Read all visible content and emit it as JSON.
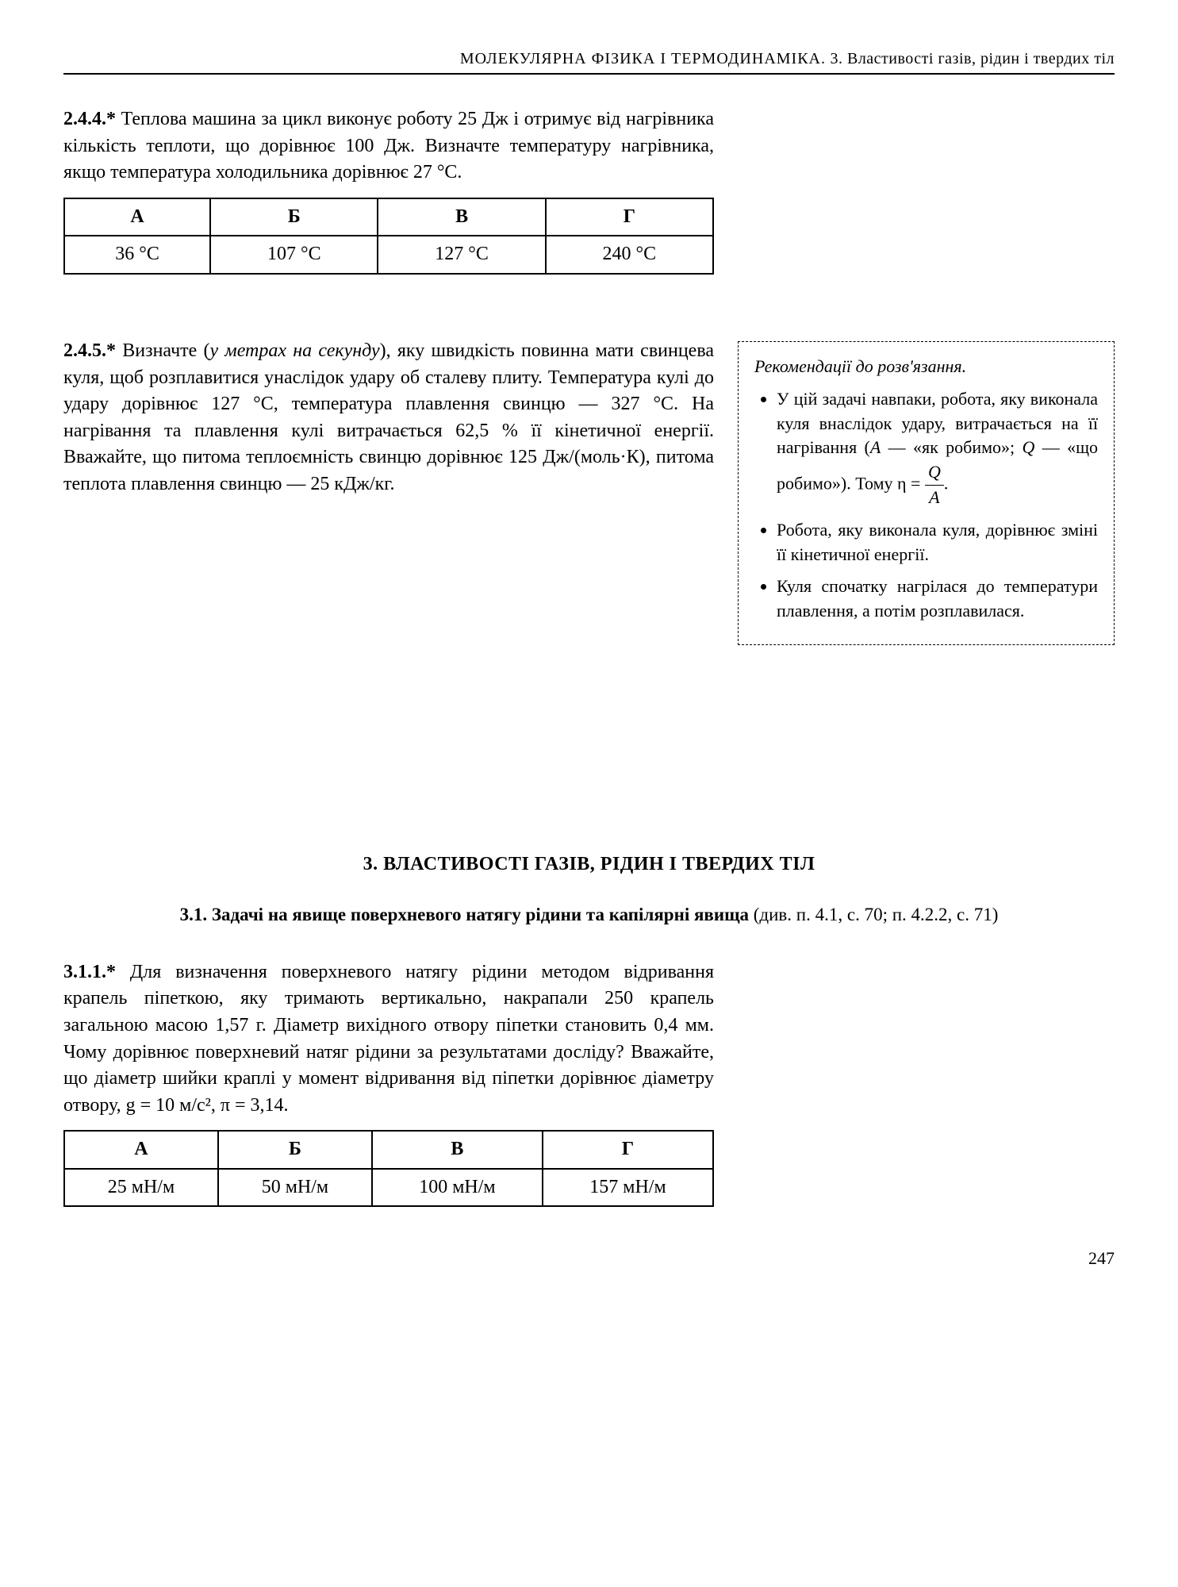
{
  "header": {
    "main": "МОЛЕКУЛЯРНА ФІЗИКА І ТЕРМОДИНАМІКА.",
    "sub": "3. Властивості газів, рідин і твердих тіл"
  },
  "problem_244": {
    "number": "2.4.4.*",
    "text": "Теплова машина за цикл виконує роботу 25 Дж і отримує від нагрівника кількість теплоти, що дорівнює 100 Дж. Визначте температуру нагрівника, якщо температура холодильника дорівнює 27 °С.",
    "table": {
      "headers": [
        "А",
        "Б",
        "В",
        "Г"
      ],
      "values": [
        "36 °С",
        "107 °С",
        "127 °С",
        "240 °С"
      ]
    }
  },
  "problem_245": {
    "number": "2.4.5.*",
    "intro": "Визначте (",
    "emphasis": "у метрах на секунду",
    "text": "), яку швидкість повинна мати свинцева куля, щоб розплавитися унаслідок удару об сталеву плиту. Температура кулі до удару дорівнює 127 °С, температура плавлення свинцю — 327 °С. На нагрівання та плавлення кулі витрачається 62,5 % її кінетичної енергії. Вважайте, що питома теплоємність свинцю дорівнює 125 Дж/(моль·К), питома теплота плавлення свинцю — 25 кДж/кг."
  },
  "hint": {
    "title": "Рекомендації до розв'язання.",
    "item1_part1": "У цій задачі навпаки, робота, яку виконала куля внаслідок удару, витрачається на її нагрівання (",
    "item1_A": "А",
    "item1_part2": " — «як робимо»; ",
    "item1_Q": "Q",
    "item1_part3": " — «що робимо»). Тому ",
    "item1_eta": "η",
    "item1_eq": " = ",
    "item1_num": "Q",
    "item1_den": "A",
    "item1_end": ".",
    "item2": "Робота, яку виконала куля, дорівнює зміні її кінетичної енергії.",
    "item3": "Куля спочатку нагрілася до температури плавлення, а потім розплавилася."
  },
  "section3": {
    "title": "3. ВЛАСТИВОСТІ ГАЗІВ, РІДИН І ТВЕРДИХ ТІЛ",
    "subtitle_bold": "3.1. Задачі на явище поверхневого натягу рідини та капілярні явища",
    "subtitle_rest": " (див. п. 4.1, с. 70; п. 4.2.2, с. 71)"
  },
  "problem_311": {
    "number": "3.1.1.*",
    "text": "Для визначення поверхневого натягу рідини методом відривання крапель піпеткою, яку тримають вертикально, накрапали 250 крапель загальною масою 1,57 г. Діаметр вихідного отвору піпетки становить 0,4 мм. Чому дорівнює поверхневий натяг рідини за результатами досліду? Вважайте, що діаметр шийки краплі у момент відривання від піпетки дорівнює діаметру отвору, g = 10 м/с², π = 3,14.",
    "table": {
      "headers": [
        "А",
        "Б",
        "В",
        "Г"
      ],
      "values": [
        "25 мН/м",
        "50 мН/м",
        "100 мН/м",
        "157 мН/м"
      ]
    }
  },
  "page_number": "247"
}
